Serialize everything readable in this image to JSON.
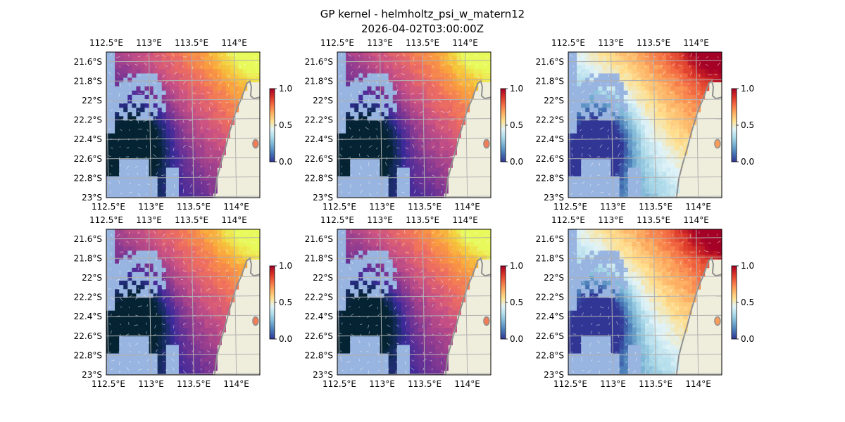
{
  "figure": {
    "title": "GP kernel - helmholtz_psi_w_matern12",
    "subtitle": "2026-04-02T03:00:00Z"
  },
  "colors": {
    "land": "#efeedd",
    "land_mask": "#98b4e0",
    "coast": "#8f8f8f",
    "grid": "#b0b0b0"
  },
  "maps": {
    "x_ticks": [
      "112.5°E",
      "113°E",
      "113.5°E",
      "114°E"
    ],
    "y_ticks": [
      "21.6°S",
      "21.8°S",
      "22°S",
      "22.2°S",
      "22.4°S",
      "22.6°S",
      "22.8°S",
      "23°S"
    ],
    "lon_values": [
      112.5,
      113.0,
      113.5,
      114.0
    ],
    "lat_values": [
      -21.6,
      -21.8,
      -22.0,
      -22.2,
      -22.4,
      -22.6,
      -22.8,
      -23.0
    ],
    "lon_range": [
      112.5,
      114.3
    ],
    "lat_range": [
      -23.0,
      -21.5
    ],
    "colorbar_ticks": [
      "0.0",
      "0.5",
      "1.0"
    ],
    "colorbar_values": [
      0.0,
      0.5,
      1.0
    ],
    "colorbar_range": [
      0,
      1
    ],
    "panel_colormaps": [
      "cmocean-thermal",
      "cmocean-thermal",
      "RdYlBu_r",
      "cmocean-thermal",
      "cmocean-thermal",
      "RdYlBu_r"
    ],
    "colorbar_colormaps": [
      "RdYlBu_r",
      "RdYlBu_r",
      "RdYlBu_r",
      "RdYlBu_r",
      "RdYlBu_r",
      "RdYlBu_r"
    ]
  }
}
